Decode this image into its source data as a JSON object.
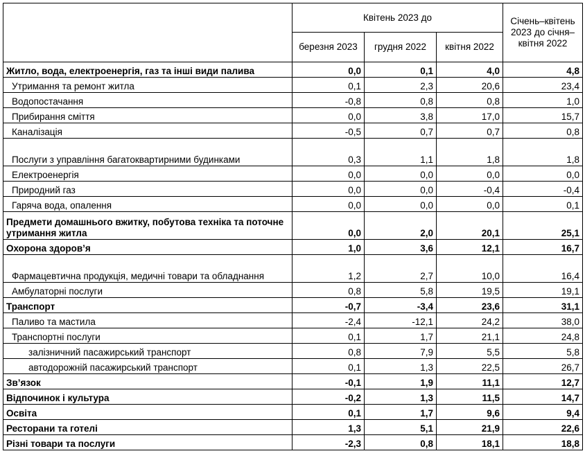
{
  "header": {
    "group_label": "Квітень 2023 до",
    "last_col_label": "Січень–квітень 2023 до січня–квітня 2022",
    "cols": [
      "березня 2023",
      "грудня 2022",
      "квітня 2022"
    ]
  },
  "rows": [
    {
      "label": "Житло, вода, електроенергія, газ та інші види палива",
      "v": [
        "0,0",
        "0,1",
        "4,0",
        "4,8"
      ]
    },
    {
      "label": "Утримання та ремонт житла",
      "v": [
        "0,1",
        "2,3",
        "20,6",
        "23,4"
      ]
    },
    {
      "label": "Водопостачання",
      "v": [
        "-0,8",
        "0,8",
        "0,8",
        "1,0"
      ]
    },
    {
      "label": "Прибирання сміття",
      "v": [
        "0,0",
        "3,8",
        "17,0",
        "15,7"
      ]
    },
    {
      "label": "Каналізація",
      "v": [
        "-0,5",
        "0,7",
        "0,7",
        "0,8"
      ]
    },
    {
      "label": "Послуги з управління багатоквартирними будинками",
      "v": [
        "0,3",
        "1,1",
        "1,8",
        "1,8"
      ]
    },
    {
      "label": "Електроенергія",
      "v": [
        "0,0",
        "0,0",
        "0,0",
        "0,0"
      ]
    },
    {
      "label": "Природний газ",
      "v": [
        "0,0",
        "0,0",
        "-0,4",
        "-0,4"
      ]
    },
    {
      "label": "Гаряча вода, опалення",
      "v": [
        "0,0",
        "0,0",
        "0,0",
        "0,1"
      ]
    },
    {
      "label": "Предмети домашнього вжитку, побутова техніка та поточне утримання житла",
      "v": [
        "0,0",
        "2,0",
        "20,1",
        "25,1"
      ]
    },
    {
      "label": "Охорона здоров’я",
      "v": [
        "1,0",
        "3,6",
        "12,1",
        "16,7"
      ]
    },
    {
      "label": "Фармацевтична продукція, медичні товари та обладнання",
      "v": [
        "1,2",
        "2,7",
        "10,0",
        "16,4"
      ]
    },
    {
      "label": "Амбулаторні послуги",
      "v": [
        "0,8",
        "5,8",
        "19,5",
        "19,1"
      ]
    },
    {
      "label": "Транспорт",
      "v": [
        "-0,7",
        "-3,4",
        "23,6",
        "31,1"
      ]
    },
    {
      "label": "Паливо та мастила",
      "v": [
        "-2,4",
        "-12,1",
        "24,2",
        "38,0"
      ]
    },
    {
      "label": "Транспортні послуги",
      "v": [
        "0,1",
        "1,7",
        "21,1",
        "24,8"
      ]
    },
    {
      "label": "залізничний пасажирський транспорт",
      "v": [
        "0,8",
        "7,9",
        "5,5",
        "5,8"
      ]
    },
    {
      "label": "автодорожній пасажирський транспорт",
      "v": [
        "0,1",
        "1,3",
        "22,5",
        "26,7"
      ]
    },
    {
      "label": "Зв’язок",
      "v": [
        "-0,1",
        "1,9",
        "11,1",
        "12,7"
      ]
    },
    {
      "label": "Відпочинок і культура",
      "v": [
        "-0,2",
        "1,3",
        "11,5",
        "14,7"
      ]
    },
    {
      "label": "Освіта",
      "v": [
        "0,1",
        "1,7",
        "9,6",
        "9,4"
      ]
    },
    {
      "label": "Ресторани та готелі",
      "v": [
        "1,3",
        "5,1",
        "21,9",
        "22,6"
      ]
    },
    {
      "label": "Різні товари та послуги",
      "v": [
        "-2,3",
        "0,8",
        "18,1",
        "18,8"
      ]
    }
  ]
}
